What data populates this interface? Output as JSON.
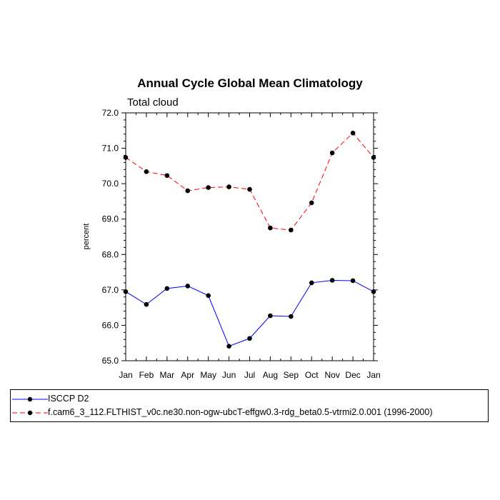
{
  "chart_data": {
    "type": "line",
    "title": "Annual Cycle Global Mean Climatology",
    "subtitle": "Total cloud",
    "xlabel": "",
    "ylabel": "percent",
    "categories": [
      "Jan",
      "Feb",
      "Mar",
      "Apr",
      "May",
      "Jun",
      "Jul",
      "Aug",
      "Sep",
      "Oct",
      "Nov",
      "Dec",
      "Jan"
    ],
    "ylim": [
      65.0,
      72.0
    ],
    "yticks": [
      "65.0",
      "66.0",
      "67.0",
      "68.0",
      "69.0",
      "70.0",
      "71.0",
      "72.0"
    ],
    "series": [
      {
        "name": "ISCCP D2",
        "color": "#0000ff",
        "dash": "solid",
        "values": [
          66.95,
          66.59,
          67.04,
          67.11,
          66.84,
          65.41,
          65.63,
          66.27,
          66.25,
          67.2,
          67.27,
          67.26,
          66.95
        ]
      },
      {
        "name": "f.cam6_3_112.FLTHIST_v0c.ne30.non-ogw-ubcT-effgw0.3-rdg_beta0.5-vtrmi2.0.001 (1996-2000)",
        "color": "#ff0000",
        "dash": "dashed",
        "values": [
          70.74,
          70.34,
          70.23,
          69.8,
          69.89,
          69.91,
          69.84,
          68.75,
          68.69,
          69.46,
          70.87,
          71.43,
          70.74
        ]
      }
    ]
  }
}
